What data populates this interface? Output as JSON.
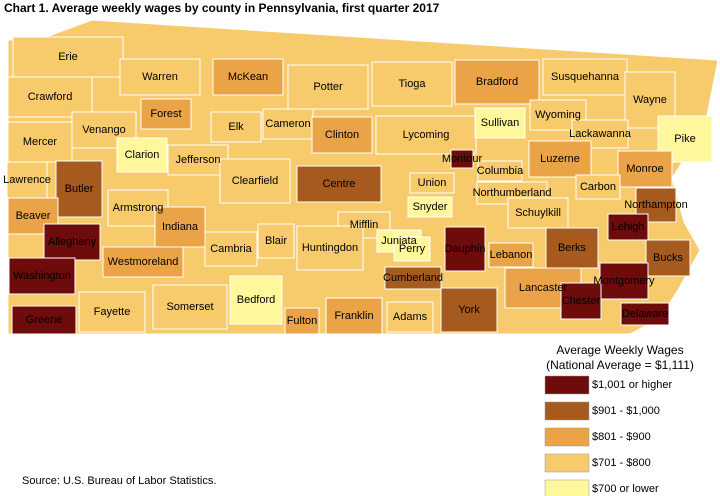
{
  "title": "Chart 1. Average weekly wages by county in Pennsylvania, first quarter 2017",
  "legend": {
    "title": "Average Weekly Wages",
    "subtitle": "(National Average = $1,111)",
    "items": [
      {
        "label": "$1,001 or higher",
        "color": "#6e0b0b"
      },
      {
        "label": "$901 - $1,000",
        "color": "#a65a1e"
      },
      {
        "label": "$801 - $900",
        "color": "#eba348"
      },
      {
        "label": "$701 - $800",
        "color": "#f7ca6c"
      },
      {
        "label": "$700 or lower",
        "color": "#fff79c"
      }
    ]
  },
  "counties": [
    {
      "name": "Erie",
      "wage": "$701 - $800"
    },
    {
      "name": "Warren",
      "wage": "$701 - $800"
    },
    {
      "name": "McKean",
      "wage": "$801 - $900"
    },
    {
      "name": "Potter",
      "wage": "$701 - $800"
    },
    {
      "name": "Tioga",
      "wage": "$701 - $800"
    },
    {
      "name": "Bradford",
      "wage": "$801 - $900"
    },
    {
      "name": "Susquehanna",
      "wage": "$701 - $800"
    },
    {
      "name": "Wayne",
      "wage": "$701 - $800"
    },
    {
      "name": "Crawford",
      "wage": "$701 - $800"
    },
    {
      "name": "Forest",
      "wage": "$801 - $900"
    },
    {
      "name": "Elk",
      "wage": "$701 - $800"
    },
    {
      "name": "Cameron",
      "wage": "$701 - $800"
    },
    {
      "name": "Clinton",
      "wage": "$801 - $900"
    },
    {
      "name": "Lycoming",
      "wage": "$701 - $800"
    },
    {
      "name": "Sullivan",
      "wage": "$700 or lower"
    },
    {
      "name": "Wyoming",
      "wage": "$701 - $800"
    },
    {
      "name": "Lackawanna",
      "wage": "$701 - $800"
    },
    {
      "name": "Pike",
      "wage": "$700 or lower"
    },
    {
      "name": "Mercer",
      "wage": "$701 - $800"
    },
    {
      "name": "Venango",
      "wage": "$701 - $800"
    },
    {
      "name": "Clarion",
      "wage": "$700 or lower"
    },
    {
      "name": "Jefferson",
      "wage": "$701 - $800"
    },
    {
      "name": "Clearfield",
      "wage": "$701 - $800"
    },
    {
      "name": "Centre",
      "wage": "$901 - $1,000"
    },
    {
      "name": "Montour",
      "wage": "$1,001 or higher"
    },
    {
      "name": "Columbia",
      "wage": "$701 - $800"
    },
    {
      "name": "Luzerne",
      "wage": "$801 - $900"
    },
    {
      "name": "Monroe",
      "wage": "$801 - $900"
    },
    {
      "name": "Lawrence",
      "wage": "$701 - $800"
    },
    {
      "name": "Butler",
      "wage": "$901 - $1,000"
    },
    {
      "name": "Union",
      "wage": "$701 - $800"
    },
    {
      "name": "Northumberland",
      "wage": "$701 - $800"
    },
    {
      "name": "Carbon",
      "wage": "$701 - $800"
    },
    {
      "name": "Northampton",
      "wage": "$901 - $1,000"
    },
    {
      "name": "Beaver",
      "wage": "$801 - $900"
    },
    {
      "name": "Armstrong",
      "wage": "$701 - $800"
    },
    {
      "name": "Mifflin",
      "wage": "$701 - $800"
    },
    {
      "name": "Snyder",
      "wage": "$700 or lower"
    },
    {
      "name": "Juniata",
      "wage": "$700 or lower"
    },
    {
      "name": "Schuylkill",
      "wage": "$701 - $800"
    },
    {
      "name": "Lehigh",
      "wage": "$1,001 or higher"
    },
    {
      "name": "Allegheny",
      "wage": "$1,001 or higher"
    },
    {
      "name": "Indiana",
      "wage": "$801 - $900"
    },
    {
      "name": "Cambria",
      "wage": "$701 - $800"
    },
    {
      "name": "Blair",
      "wage": "$701 - $800"
    },
    {
      "name": "Huntingdon",
      "wage": "$701 - $800"
    },
    {
      "name": "Perry",
      "wage": "$700 or lower"
    },
    {
      "name": "Dauphin",
      "wage": "$1,001 or higher"
    },
    {
      "name": "Berks",
      "wage": "$901 - $1,000"
    },
    {
      "name": "Bucks",
      "wage": "$901 - $1,000"
    },
    {
      "name": "Washington",
      "wage": "$1,001 or higher"
    },
    {
      "name": "Westmoreland",
      "wage": "$801 - $900"
    },
    {
      "name": "Lebanon",
      "wage": "$801 - $900"
    },
    {
      "name": "Montgomery",
      "wage": "$1,001 or higher"
    },
    {
      "name": "Cumberland",
      "wage": "$901 - $1,000"
    },
    {
      "name": "Lancaster",
      "wage": "$801 - $900"
    },
    {
      "name": "Chester",
      "wage": "$1,001 or higher"
    },
    {
      "name": "Delaware",
      "wage": "$1,001 or higher"
    },
    {
      "name": "Greene",
      "wage": "$1,001 or higher"
    },
    {
      "name": "Fayette",
      "wage": "$701 - $800"
    },
    {
      "name": "Somerset",
      "wage": "$701 - $800"
    },
    {
      "name": "Bedford",
      "wage": "$700 or lower"
    },
    {
      "name": "Fulton",
      "wage": "$801 - $900"
    },
    {
      "name": "Franklin",
      "wage": "$801 - $900"
    },
    {
      "name": "Adams",
      "wage": "$701 - $800"
    },
    {
      "name": "York",
      "wage": "$901 - $1,000"
    }
  ],
  "source": "Source: U.S. Bureau of Labor Statistics."
}
